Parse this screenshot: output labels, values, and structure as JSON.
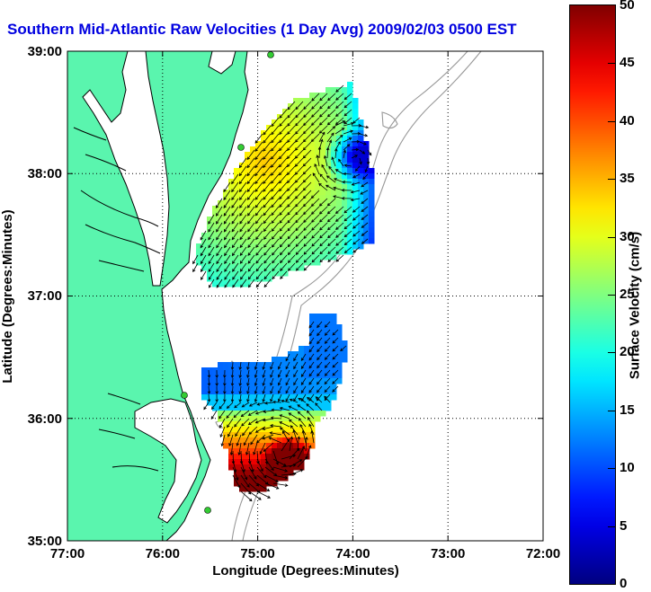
{
  "title": "Southern Mid-Atlantic Raw Velocities (1 Day Avg) 2009/02/03 0500 EST",
  "map": {
    "x_axis": {
      "label": "Longitude (Degrees:Minutes)",
      "ticks": [
        "77:00",
        "76:00",
        "75:00",
        "74:00",
        "73:00",
        "72:00"
      ],
      "range": [
        -77,
        -72
      ]
    },
    "y_axis": {
      "label": "Latitude (Degrees:Minutes)",
      "ticks": [
        "39:00",
        "38:00",
        "37:00",
        "36:00",
        "35:00"
      ],
      "range": [
        35,
        39
      ]
    },
    "gridlines": "dotted",
    "colors": {
      "land": "#5af5ae",
      "water": "#ffffff",
      "coastline": "#000000",
      "bathymetry": "#999999",
      "station": "#33cc33"
    }
  },
  "colorbar": {
    "label": "Surface Velocity (cm/s)",
    "ticks": [
      "0",
      "5",
      "10",
      "15",
      "20",
      "25",
      "30",
      "35",
      "40",
      "45",
      "50"
    ],
    "range": [
      0,
      50
    ],
    "colormap": "jet"
  }
}
